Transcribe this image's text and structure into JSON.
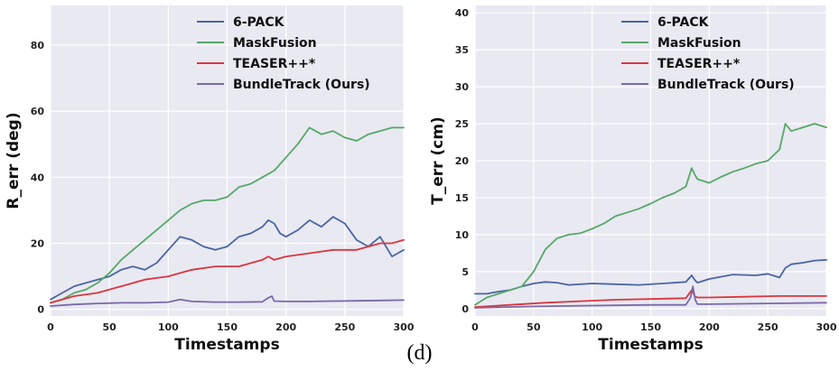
{
  "caption": "(d)",
  "colors": {
    "plot_bg": "#e9e9f2",
    "grid": "#ffffff",
    "6-PACK": "#4a65a4",
    "MaskFusion": "#55a868",
    "TEASER++*": "#d9363e",
    "BundleTrack (Ours)": "#7a68a8"
  },
  "chart_data": [
    {
      "type": "line",
      "xlabel": "Timestamps",
      "ylabel": "R_err (deg)",
      "xlim": [
        0,
        300
      ],
      "ylim": [
        -2,
        92
      ],
      "xticks": [
        0,
        50,
        100,
        150,
        200,
        250,
        300
      ],
      "yticks": [
        0,
        20,
        40,
        60,
        80
      ],
      "grid": true,
      "legend_position": "top-right",
      "series": [
        {
          "name": "6-PACK",
          "x": [
            0,
            10,
            20,
            30,
            40,
            50,
            60,
            70,
            80,
            90,
            100,
            110,
            120,
            130,
            140,
            150,
            160,
            170,
            180,
            185,
            190,
            195,
            200,
            210,
            220,
            230,
            240,
            250,
            260,
            270,
            280,
            290,
            295,
            300
          ],
          "y": [
            3,
            5,
            7,
            8,
            9,
            10,
            12,
            13,
            12,
            14,
            18,
            22,
            21,
            19,
            18,
            19,
            22,
            23,
            25,
            27,
            26,
            23,
            22,
            24,
            27,
            25,
            28,
            26,
            21,
            19,
            22,
            16,
            17,
            18
          ]
        },
        {
          "name": "MaskFusion",
          "x": [
            0,
            10,
            20,
            30,
            40,
            50,
            60,
            70,
            80,
            90,
            100,
            110,
            120,
            130,
            140,
            150,
            160,
            170,
            180,
            190,
            200,
            210,
            220,
            230,
            240,
            250,
            260,
            270,
            280,
            290,
            300
          ],
          "y": [
            2,
            3,
            5,
            6,
            8,
            11,
            15,
            18,
            21,
            24,
            27,
            30,
            32,
            33,
            33,
            34,
            37,
            38,
            40,
            42,
            46,
            50,
            55,
            53,
            54,
            52,
            51,
            53,
            54,
            55,
            55
          ]
        },
        {
          "name": "TEASER++*",
          "x": [
            0,
            20,
            40,
            60,
            80,
            100,
            120,
            140,
            160,
            180,
            185,
            190,
            200,
            220,
            240,
            260,
            280,
            290,
            300
          ],
          "y": [
            2,
            4,
            5,
            7,
            9,
            10,
            12,
            13,
            13,
            15,
            16,
            15,
            16,
            17,
            18,
            18,
            20,
            20,
            21
          ]
        },
        {
          "name": "BundleTrack (Ours)",
          "x": [
            0,
            20,
            40,
            60,
            80,
            100,
            110,
            120,
            140,
            160,
            180,
            185,
            188,
            190,
            200,
            220,
            240,
            260,
            280,
            300
          ],
          "y": [
            1,
            1.5,
            1.8,
            2,
            2,
            2.2,
            3,
            2.4,
            2.2,
            2.2,
            2.3,
            3.5,
            4,
            2.5,
            2.4,
            2.4,
            2.5,
            2.6,
            2.7,
            2.8
          ]
        }
      ]
    },
    {
      "type": "line",
      "xlabel": "Timestamps",
      "ylabel": "T_err (cm)",
      "xlim": [
        0,
        300
      ],
      "ylim": [
        -1,
        41
      ],
      "xticks": [
        0,
        50,
        100,
        150,
        200,
        250,
        300
      ],
      "yticks": [
        0,
        5,
        10,
        15,
        20,
        25,
        30,
        35,
        40
      ],
      "grid": true,
      "legend_position": "top-right",
      "series": [
        {
          "name": "6-PACK",
          "x": [
            0,
            10,
            20,
            30,
            40,
            50,
            60,
            70,
            80,
            90,
            100,
            120,
            140,
            160,
            180,
            185,
            188,
            190,
            200,
            220,
            240,
            250,
            260,
            265,
            270,
            280,
            290,
            300
          ],
          "y": [
            2,
            2,
            2.3,
            2.5,
            3,
            3.4,
            3.6,
            3.5,
            3.2,
            3.3,
            3.4,
            3.3,
            3.2,
            3.4,
            3.6,
            4.5,
            3.8,
            3.5,
            4,
            4.6,
            4.5,
            4.7,
            4.2,
            5.5,
            6,
            6.2,
            6.5,
            6.6
          ]
        },
        {
          "name": "MaskFusion",
          "x": [
            0,
            10,
            20,
            30,
            40,
            50,
            60,
            70,
            80,
            90,
            100,
            110,
            120,
            130,
            140,
            150,
            160,
            170,
            180,
            185,
            188,
            190,
            200,
            210,
            220,
            230,
            240,
            250,
            260,
            265,
            270,
            280,
            290,
            300
          ],
          "y": [
            0.5,
            1.5,
            2,
            2.5,
            3,
            5,
            8,
            9.5,
            10,
            10.2,
            10.8,
            11.5,
            12.5,
            13,
            13.5,
            14.2,
            15,
            15.6,
            16.5,
            19,
            18,
            17.5,
            17,
            17.8,
            18.5,
            19,
            19.6,
            20,
            21.5,
            25,
            24,
            24.5,
            25,
            24.5
          ]
        },
        {
          "name": "TEASER++*",
          "x": [
            0,
            30,
            60,
            90,
            120,
            150,
            180,
            185,
            188,
            190,
            200,
            230,
            260,
            300
          ],
          "y": [
            0.2,
            0.5,
            0.8,
            1,
            1.2,
            1.3,
            1.4,
            2.5,
            1.6,
            1.5,
            1.5,
            1.6,
            1.7,
            1.7
          ]
        },
        {
          "name": "BundleTrack (Ours)",
          "x": [
            0,
            50,
            100,
            150,
            180,
            184,
            186,
            188,
            190,
            200,
            250,
            300
          ],
          "y": [
            0.1,
            0.3,
            0.4,
            0.5,
            0.5,
            1.5,
            3,
            1.2,
            0.6,
            0.6,
            0.7,
            0.8
          ]
        }
      ]
    }
  ]
}
